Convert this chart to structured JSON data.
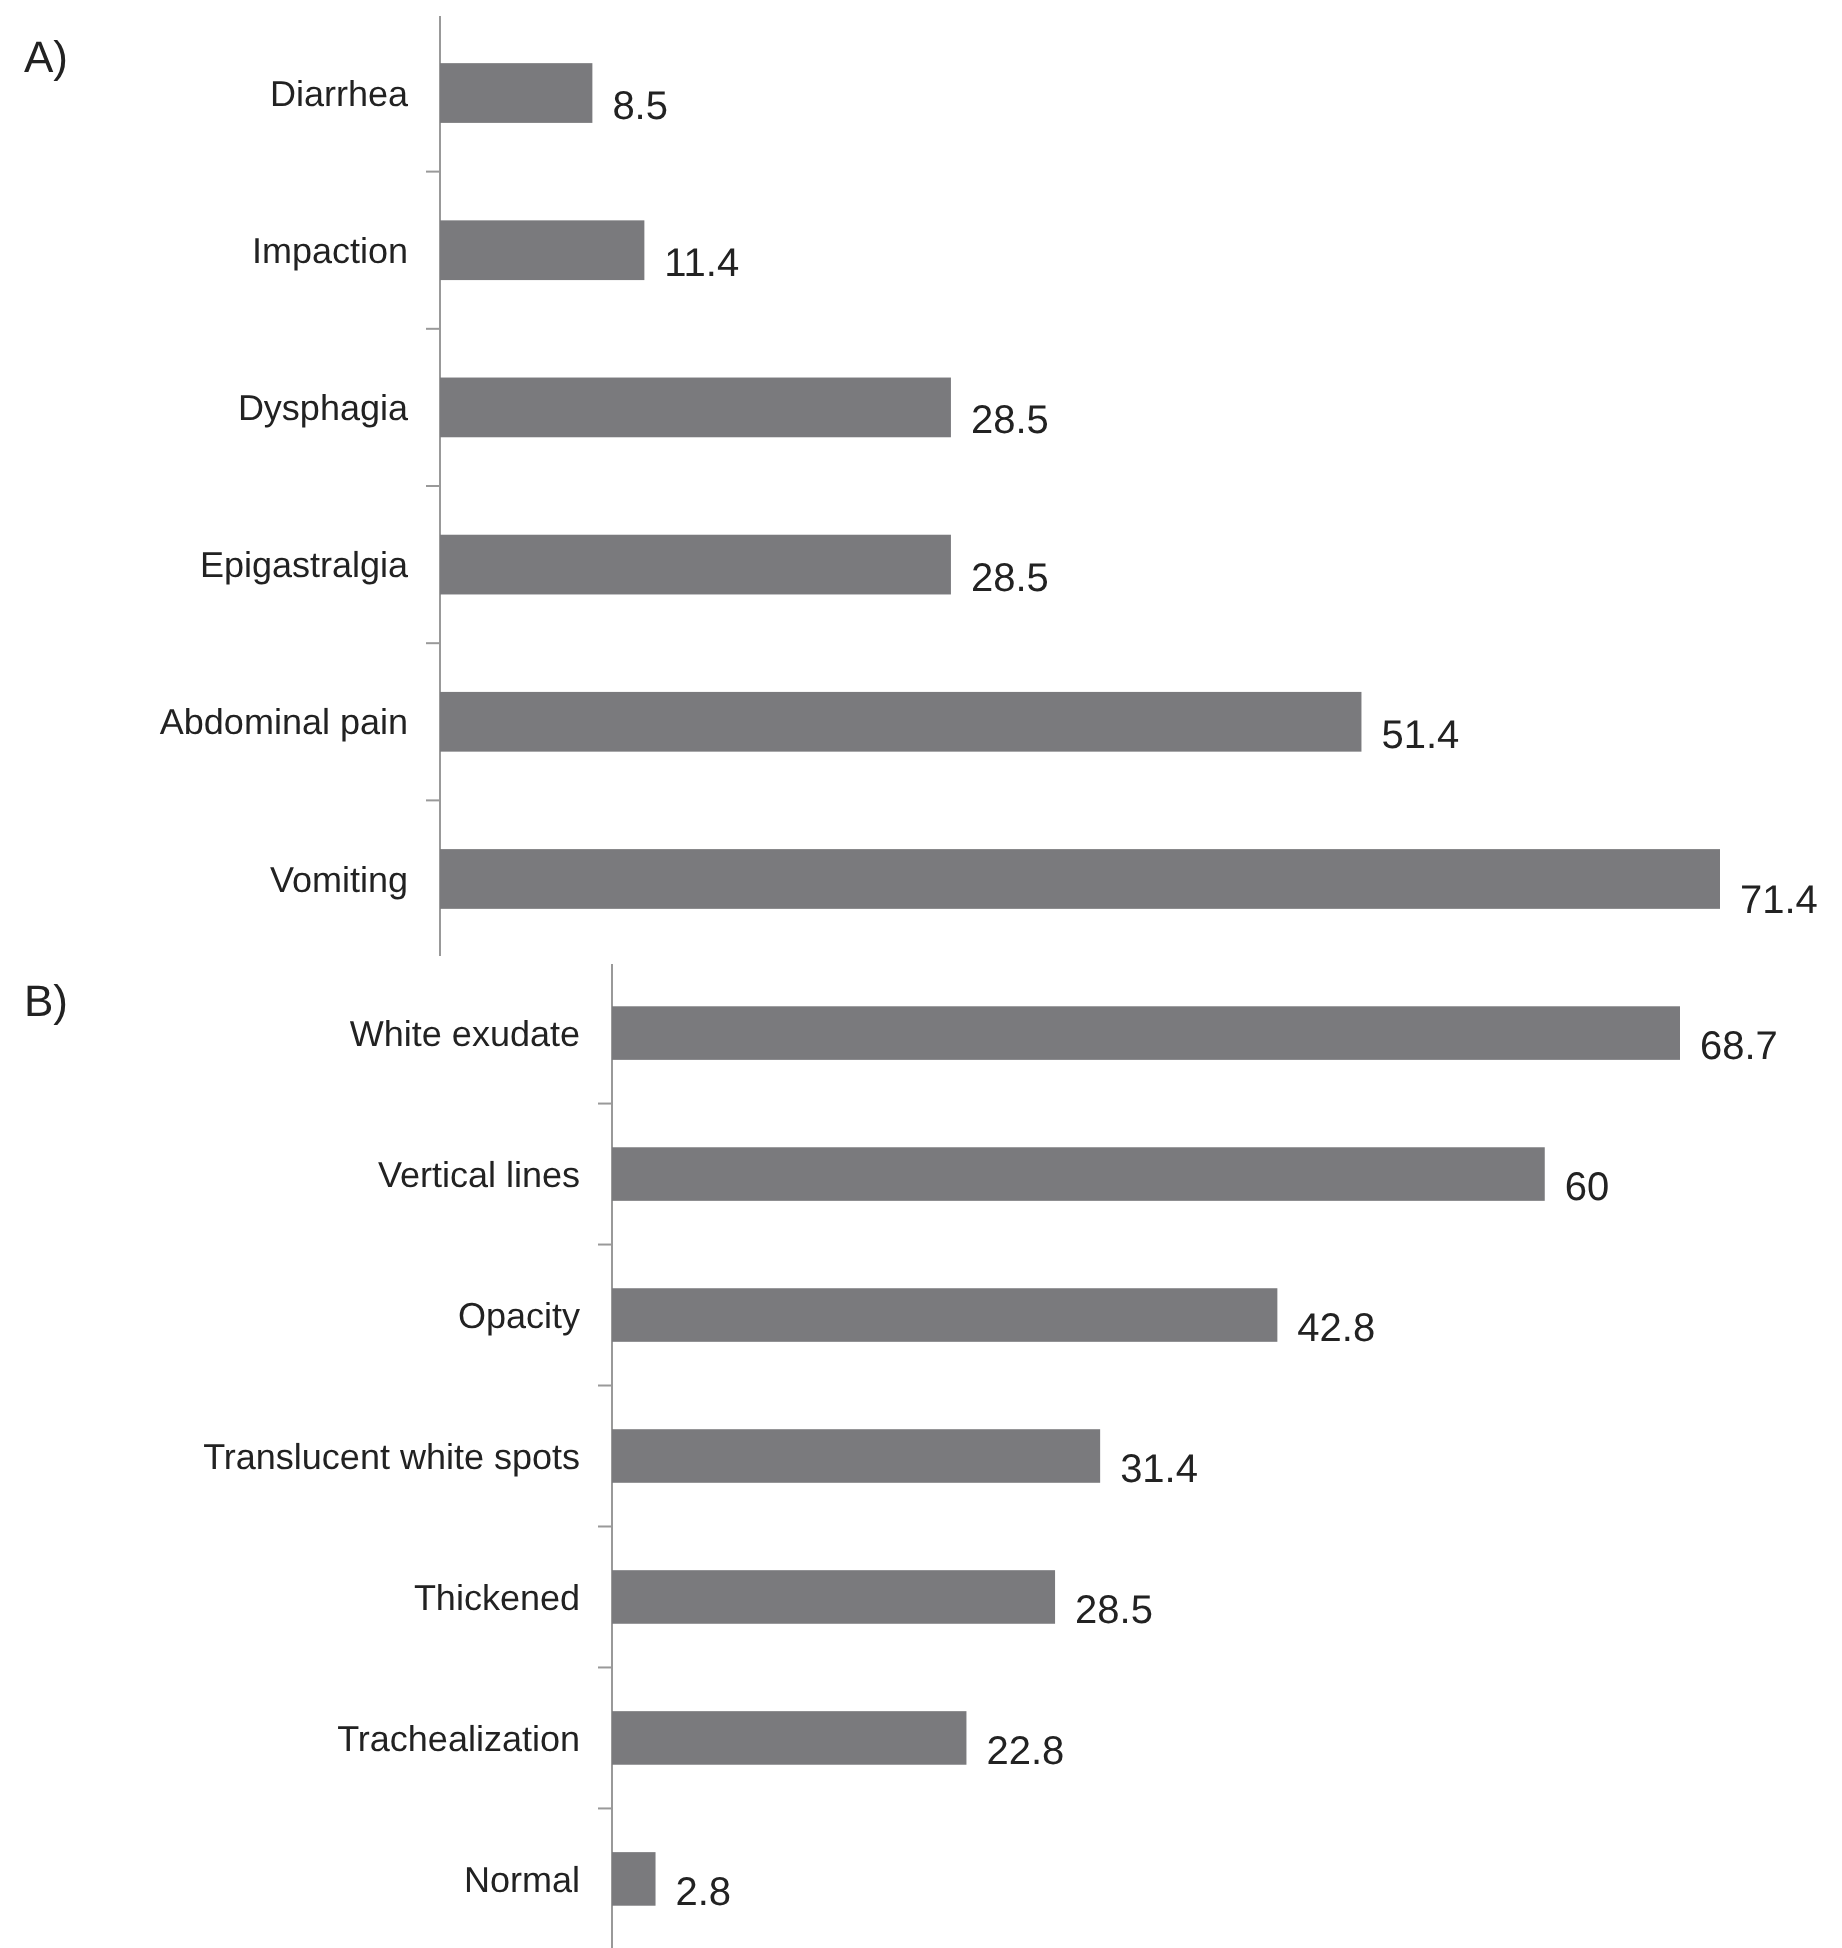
{
  "chart_data": [
    {
      "type": "bar",
      "orientation": "horizontal",
      "title": "A)",
      "categories": [
        "Diarrhea",
        "Impaction",
        "Dysphagia",
        "Epigastralgia",
        "Abdominal pain",
        "Vomiting"
      ],
      "values": [
        8.5,
        11.4,
        28.5,
        28.5,
        51.4,
        71.4
      ],
      "color": "#7a7a7d",
      "data_labels": true,
      "tick_labels": "y"
    },
    {
      "type": "bar",
      "orientation": "horizontal",
      "title": "B)",
      "categories": [
        "White exudate",
        "Vertical lines",
        "Opacity",
        "Translucent white spots",
        "Thickened",
        "Trachealization",
        "Normal"
      ],
      "values": [
        68.7,
        60,
        42.8,
        31.4,
        28.5,
        22.8,
        2.8
      ],
      "color": "#7a7a7d",
      "data_labels": true,
      "tick_labels": "y"
    }
  ]
}
